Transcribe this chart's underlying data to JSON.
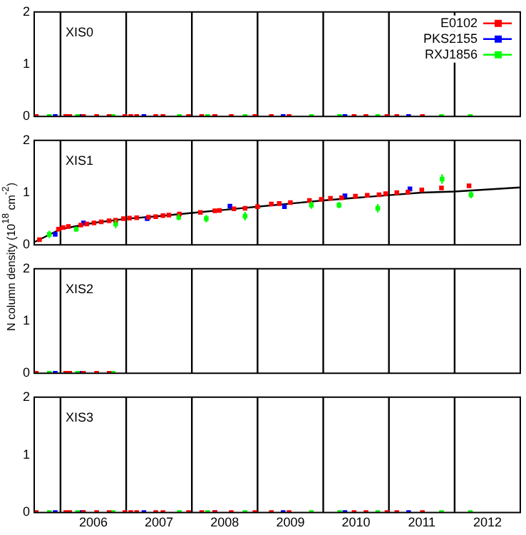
{
  "chart_data": [
    {
      "type": "scatter",
      "title": "XIS0",
      "xlim": [
        2005.6,
        2013.0
      ],
      "ylim": [
        0,
        2
      ],
      "yticks": [
        0,
        1,
        2
      ],
      "tick_labels": "y",
      "marker": "square",
      "legend": "top right",
      "ref_lines": [
        {
          "axis": "x",
          "value": 2006,
          "color": "#000000"
        },
        {
          "axis": "x",
          "value": 2007,
          "color": "#000000"
        },
        {
          "axis": "x",
          "value": 2008,
          "color": "#000000"
        },
        {
          "axis": "x",
          "value": 2009,
          "color": "#000000"
        },
        {
          "axis": "x",
          "value": 2010,
          "color": "#000000"
        },
        {
          "axis": "x",
          "value": 2011,
          "color": "#000000"
        },
        {
          "axis": "x",
          "value": 2012,
          "color": "#000000"
        }
      ],
      "series": [
        {
          "name": "E0102",
          "color": "#ff0000",
          "x": [
            2005.63,
            2006.08,
            2006.14,
            2006.35,
            2006.55,
            2006.74,
            2006.98,
            2007.07,
            2007.16,
            2007.45,
            2007.56,
            2007.95,
            2008.15,
            2008.35,
            2008.6,
            2008.96,
            2009.21,
            2009.48,
            2010.47,
            2010.65,
            2010.97,
            2011.12,
            2011.51
          ],
          "values": [
            0,
            0,
            0,
            0,
            0,
            0,
            0,
            0,
            0,
            0,
            0,
            0,
            0,
            0,
            0,
            0,
            0,
            0,
            0,
            0,
            0,
            0,
            0
          ]
        },
        {
          "name": "PKS2155",
          "color": "#0000ff",
          "x": [
            2005.92,
            2006.33,
            2007.27,
            2008.35,
            2009.39,
            2010.33,
            2011.3
          ],
          "values": [
            0,
            0,
            0,
            0,
            0,
            0,
            0
          ]
        },
        {
          "name": "RXJ1856",
          "color": "#00ff00",
          "x": [
            2005.83,
            2006.26,
            2006.8,
            2007.81,
            2008.24,
            2008.81,
            2009.82,
            2010.25,
            2010.83,
            2011.8,
            2012.24
          ],
          "values": [
            0,
            0,
            0,
            0,
            0,
            0,
            0,
            0,
            0,
            0,
            0
          ]
        }
      ]
    },
    {
      "type": "scatter",
      "title": "XIS1",
      "ylabel": "N column density (10$^{18}$ cm$^{-2}$)",
      "xlim": [
        2005.6,
        2013.0
      ],
      "ylim": [
        0,
        2
      ],
      "yticks": [
        0,
        1,
        2
      ],
      "tick_labels": "y",
      "marker": "square",
      "ref_lines": [
        {
          "axis": "x",
          "value": 2006,
          "color": "#000000"
        },
        {
          "axis": "x",
          "value": 2007,
          "color": "#000000"
        },
        {
          "axis": "x",
          "value": 2008,
          "color": "#000000"
        },
        {
          "axis": "x",
          "value": 2009,
          "color": "#000000"
        },
        {
          "axis": "x",
          "value": 2010,
          "color": "#000000"
        },
        {
          "axis": "x",
          "value": 2011,
          "color": "#000000"
        },
        {
          "axis": "x",
          "value": 2012,
          "color": "#000000"
        }
      ],
      "series": [
        {
          "type": "line",
          "marker": "none",
          "color": "#000000",
          "x": [
            2005.6,
            2006.0,
            2006.5,
            2007.0,
            2007.5,
            2008.0,
            2008.5,
            2009.0,
            2009.5,
            2010.0,
            2010.5,
            2011.0,
            2011.5,
            2012.0,
            2013.0
          ],
          "values": [
            0.05,
            0.3,
            0.42,
            0.5,
            0.55,
            0.61,
            0.67,
            0.73,
            0.79,
            0.85,
            0.9,
            0.95,
            1.0,
            1.02,
            1.1
          ]
        },
        {
          "color": "#ff0000",
          "x": [
            2005.68,
            2005.97,
            2006.04,
            2006.12,
            2006.31,
            2006.4,
            2006.51,
            2006.62,
            2006.74,
            2006.84,
            2006.96,
            2007.05,
            2007.16,
            2007.34,
            2007.45,
            2007.56,
            2007.65,
            2007.81,
            2008.13,
            2008.35,
            2008.42,
            2008.64,
            2008.81,
            2009.0,
            2009.21,
            2009.33,
            2009.5,
            2009.79,
            2009.97,
            2010.11,
            2010.28,
            2010.49,
            2010.67,
            2010.85,
            2010.95,
            2011.12,
            2011.29,
            2011.5,
            2011.8,
            2012.22
          ],
          "values": [
            0.1,
            0.3,
            0.33,
            0.35,
            0.38,
            0.4,
            0.42,
            0.44,
            0.46,
            0.47,
            0.5,
            0.51,
            0.52,
            0.53,
            0.54,
            0.56,
            0.57,
            0.59,
            0.62,
            0.65,
            0.66,
            0.69,
            0.7,
            0.73,
            0.78,
            0.79,
            0.81,
            0.85,
            0.87,
            0.89,
            0.9,
            0.93,
            0.95,
            0.96,
            0.98,
            1.0,
            1.01,
            1.05,
            1.09,
            1.13
          ]
        },
        {
          "color": "#0000ff",
          "x": [
            2005.92,
            2006.35,
            2007.32,
            2008.58,
            2009.41,
            2010.33,
            2011.32
          ],
          "values": [
            0.2,
            0.42,
            0.5,
            0.74,
            0.73,
            0.94,
            1.07
          ]
        },
        {
          "color": "#00ff00",
          "x": [
            2005.83,
            2006.24,
            2006.84,
            2007.8,
            2008.22,
            2008.81,
            2009.82,
            2010.24,
            2010.83,
            2011.81,
            2012.25
          ],
          "values": [
            0.2,
            0.3,
            0.4,
            0.53,
            0.5,
            0.55,
            0.76,
            0.76,
            0.7,
            1.26,
            0.96
          ],
          "errors": [
            0.07,
            0.05,
            0.08,
            0.06,
            0.07,
            0.08,
            0.07,
            0.06,
            0.08,
            0.09,
            0.07
          ]
        }
      ]
    },
    {
      "type": "scatter",
      "title": "XIS2",
      "xlim": [
        2005.6,
        2013.0
      ],
      "ylim": [
        0,
        2
      ],
      "yticks": [
        0,
        1,
        2
      ],
      "tick_labels": "y",
      "marker": "square",
      "ref_lines": [
        {
          "axis": "x",
          "value": 2006,
          "color": "#000000"
        },
        {
          "axis": "x",
          "value": 2007,
          "color": "#000000"
        },
        {
          "axis": "x",
          "value": 2008,
          "color": "#000000"
        },
        {
          "axis": "x",
          "value": 2009,
          "color": "#000000"
        },
        {
          "axis": "x",
          "value": 2010,
          "color": "#000000"
        },
        {
          "axis": "x",
          "value": 2011,
          "color": "#000000"
        },
        {
          "axis": "x",
          "value": 2012,
          "color": "#000000"
        }
      ],
      "series": [
        {
          "color": "#ff0000",
          "x": [
            2005.63,
            2006.08,
            2006.14,
            2006.35,
            2006.55,
            2006.74
          ],
          "values": [
            0,
            0,
            0,
            0,
            0,
            0
          ]
        },
        {
          "color": "#0000ff",
          "x": [
            2005.92,
            2006.33
          ],
          "values": [
            0,
            0
          ]
        },
        {
          "color": "#00ff00",
          "x": [
            2005.83,
            2006.26,
            2006.8
          ],
          "values": [
            0,
            0,
            0
          ]
        }
      ]
    },
    {
      "type": "scatter",
      "title": "XIS3",
      "xlim": [
        2005.6,
        2013.0
      ],
      "xticks": [
        {
          "value": 2006.5,
          "label": "2006"
        },
        {
          "value": 2007.5,
          "label": "2007"
        },
        {
          "value": 2008.5,
          "label": "2008"
        },
        {
          "value": 2009.5,
          "label": "2009"
        },
        {
          "value": 2010.5,
          "label": "2010"
        },
        {
          "value": 2011.5,
          "label": "2011"
        },
        {
          "value": 2012.5,
          "label": "2012"
        }
      ],
      "ylim": [
        0,
        2
      ],
      "yticks": [
        0,
        1,
        2
      ],
      "marker": "square",
      "ref_lines": [
        {
          "axis": "x",
          "value": 2006,
          "color": "#000000"
        },
        {
          "axis": "x",
          "value": 2007,
          "color": "#000000"
        },
        {
          "axis": "x",
          "value": 2008,
          "color": "#000000"
        },
        {
          "axis": "x",
          "value": 2009,
          "color": "#000000"
        },
        {
          "axis": "x",
          "value": 2010,
          "color": "#000000"
        },
        {
          "axis": "x",
          "value": 2011,
          "color": "#000000"
        },
        {
          "axis": "x",
          "value": 2012,
          "color": "#000000"
        }
      ],
      "series": [
        {
          "color": "#ff0000",
          "x": [
            2005.63,
            2006.08,
            2006.14,
            2006.35,
            2006.55,
            2006.74,
            2006.98,
            2007.07,
            2007.16,
            2007.45,
            2007.56,
            2007.95,
            2008.15,
            2008.35,
            2008.6,
            2008.96,
            2009.21,
            2009.48,
            2010.47,
            2010.65,
            2010.97,
            2011.12,
            2011.51
          ],
          "values": [
            0,
            0,
            0,
            0,
            0,
            0,
            0,
            0,
            0,
            0,
            0,
            0,
            0,
            0,
            0,
            0,
            0,
            0,
            0,
            0,
            0,
            0,
            0
          ]
        },
        {
          "color": "#0000ff",
          "x": [
            2005.92,
            2006.33,
            2007.27,
            2008.35,
            2009.39,
            2010.33,
            2011.3
          ],
          "values": [
            0,
            0,
            0,
            0,
            0,
            0,
            0
          ]
        },
        {
          "color": "#00ff00",
          "x": [
            2005.83,
            2006.26,
            2006.8,
            2007.81,
            2008.24,
            2008.81,
            2009.82,
            2010.25,
            2010.83,
            2011.8,
            2012.24
          ],
          "values": [
            0,
            0,
            0,
            0,
            0,
            0,
            0,
            0,
            0,
            0,
            0
          ]
        }
      ]
    }
  ]
}
